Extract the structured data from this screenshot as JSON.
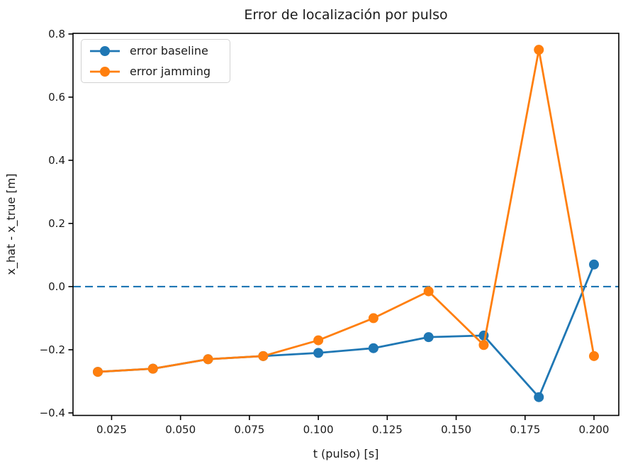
{
  "figure": {
    "title": "Error de localización por pulso",
    "xlabel": "t (pulso) [s]",
    "ylabel": "x_hat - x_true [m]"
  },
  "legend": {
    "position": "upper left",
    "items": [
      {
        "label": "error baseline",
        "color": "#1f77b4",
        "marker": "circle"
      },
      {
        "label": "error jamming",
        "color": "#ff7f0e",
        "marker": "circle"
      }
    ]
  },
  "chart_data": {
    "type": "line",
    "title": "Error de localización por pulso",
    "xlabel": "t (pulso) [s]",
    "ylabel": "x_hat - x_true [m]",
    "x": [
      0.02,
      0.04,
      0.06,
      0.08,
      0.1,
      0.12,
      0.14,
      0.16,
      0.18,
      0.2
    ],
    "series": [
      {
        "name": "error baseline",
        "color": "#1f77b4",
        "values": [
          -0.27,
          -0.26,
          -0.23,
          -0.22,
          -0.21,
          -0.195,
          -0.16,
          -0.155,
          -0.35,
          0.07
        ]
      },
      {
        "name": "error jamming",
        "color": "#ff7f0e",
        "values": [
          -0.27,
          -0.26,
          -0.23,
          -0.22,
          -0.17,
          -0.1,
          -0.015,
          -0.185,
          0.75,
          -0.22
        ]
      }
    ],
    "zero_line": {
      "y": 0.0,
      "color": "#1f77b4",
      "style": "dashed"
    },
    "xlim": [
      0.011,
      0.209
    ],
    "ylim": [
      -0.408,
      0.802
    ],
    "x_ticks": [
      0.025,
      0.05,
      0.075,
      0.1,
      0.125,
      0.15,
      0.175,
      0.2
    ],
    "x_tick_labels": [
      "0.025",
      "0.050",
      "0.075",
      "0.100",
      "0.125",
      "0.150",
      "0.175",
      "0.200"
    ],
    "y_ticks": [
      -0.4,
      -0.2,
      0.0,
      0.2,
      0.4,
      0.6,
      0.8
    ],
    "y_tick_labels": [
      "−0.4",
      "−0.2",
      "0.0",
      "0.2",
      "0.4",
      "0.6",
      "0.8"
    ],
    "grid": false,
    "legend_position": "upper left",
    "marker": "o"
  }
}
